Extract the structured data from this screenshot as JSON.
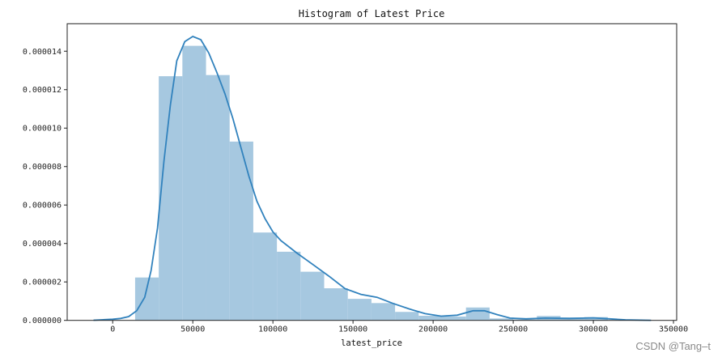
{
  "chart_data": {
    "type": "bar",
    "subtype": "histogram-with-kde",
    "title": "Histogram of Latest Price",
    "xlabel": "latest_price",
    "ylabel": "",
    "xlim": [
      -28400,
      352000
    ],
    "ylim": [
      0,
      1.543e-05
    ],
    "xticks": [
      0,
      50000,
      100000,
      150000,
      200000,
      250000,
      300000,
      350000
    ],
    "xtick_labels": [
      "0",
      "50000",
      "100000",
      "150000",
      "200000",
      "250000",
      "300000",
      "350000"
    ],
    "yticks": [
      0,
      2e-06,
      4e-06,
      6e-06,
      8e-06,
      1e-05,
      1.2e-05,
      1.4e-05
    ],
    "ytick_labels": [
      "0.000000",
      "0.000002",
      "0.000004",
      "0.000006",
      "0.000008",
      "0.000010",
      "0.000012",
      "0.000014"
    ],
    "grid": false,
    "bar_color": "#a6c8e0",
    "line_color": "#3182bd",
    "bins": {
      "edges": [
        14000,
        28750,
        43500,
        58250,
        73000,
        87750,
        102500,
        117250,
        132000,
        146750,
        161500,
        176250,
        191000,
        205750,
        220500,
        235250,
        250000,
        264750,
        279500,
        294250,
        309000
      ],
      "density": [
        2.23e-06,
        1.27e-05,
        1.428e-05,
        1.276e-05,
        9.3e-06,
        4.57e-06,
        3.57e-06,
        2.53e-06,
        1.67e-06,
        1.12e-06,
        9e-07,
        4.4e-07,
        2.4e-07,
        2e-07,
        6.7e-07,
        1e-07,
        5e-08,
        2.3e-07,
        1.5e-07,
        1.7e-07
      ]
    },
    "kde": {
      "x": [
        -12000,
        0,
        5000,
        10000,
        15000,
        20000,
        24000,
        28000,
        32000,
        36000,
        40000,
        45000,
        50000,
        55000,
        60000,
        65000,
        70000,
        75000,
        80000,
        85000,
        90000,
        95000,
        100000,
        105000,
        115000,
        125000,
        135000,
        145000,
        155000,
        165000,
        175000,
        185000,
        195000,
        205000,
        215000,
        225000,
        232000,
        240000,
        248000,
        258000,
        270000,
        285000,
        300000,
        310000,
        320000,
        336000
      ],
      "y": [
        1e-08,
        6e-08,
        1e-07,
        2e-07,
        5e-07,
        1.2e-06,
        2.6e-06,
        4.8e-06,
        8.3e-06,
        1.12e-05,
        1.35e-05,
        1.45e-05,
        1.477e-05,
        1.46e-05,
        1.39e-05,
        1.29e-05,
        1.18e-05,
        1.05e-05,
        9e-06,
        7.5e-06,
        6.2e-06,
        5.3e-06,
        4.6e-06,
        4.15e-06,
        3.5e-06,
        2.9e-06,
        2.3e-06,
        1.65e-06,
        1.35e-06,
        1.2e-06,
        8.8e-07,
        6e-07,
        3.5e-07,
        2.2e-07,
        2.7e-07,
        5e-07,
        5e-07,
        3e-07,
        1.2e-07,
        8e-08,
        1.2e-07,
        1e-07,
        1.3e-07,
        8e-08,
        3e-08,
        5e-09
      ]
    }
  },
  "watermark": "CSDN @Tang–t"
}
